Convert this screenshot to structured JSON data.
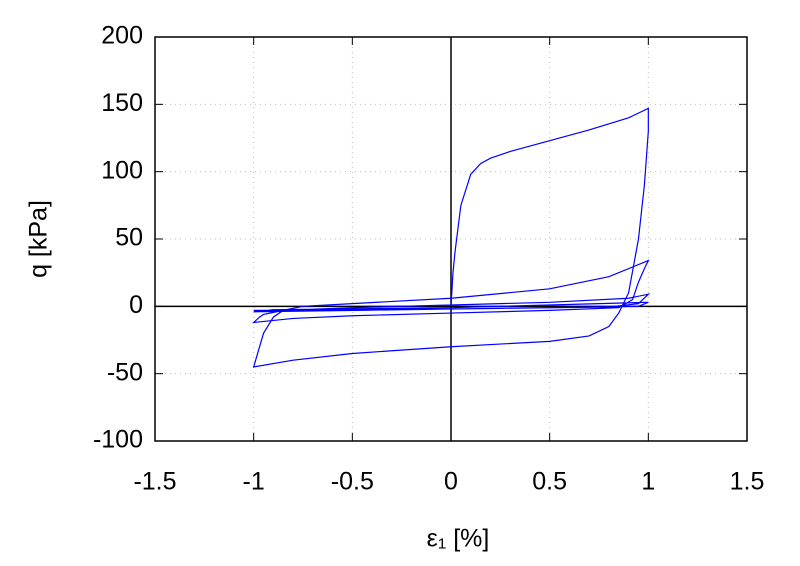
{
  "chart_data": {
    "type": "line",
    "xlabel": "ε₁ [%]",
    "ylabel": "q [kPa]",
    "x": [
      0,
      0.01,
      0.02,
      0.05,
      0.1,
      0.15,
      0.2,
      0.3,
      0.5,
      0.7,
      0.9,
      1.0,
      1.0,
      0.98,
      0.95,
      0.9,
      0.85,
      0.8,
      0.7,
      0.5,
      0,
      -0.5,
      -0.8,
      -1.0,
      -0.97,
      -0.95,
      -0.9,
      -0.85,
      -0.75,
      -0.5,
      0,
      0.5,
      0.8,
      1.0,
      0.98,
      0.95,
      0.92,
      0.85,
      0.5,
      0,
      -0.5,
      -0.8,
      -1.0,
      -0.97,
      -0.95,
      -0.85,
      -0.5,
      0,
      0.5,
      0.9,
      1.0,
      0.95,
      0.8,
      0,
      -1.0,
      -0.9,
      0,
      1.0,
      0.95,
      0,
      -1.0
    ],
    "values": [
      0,
      25,
      40,
      75,
      98,
      106,
      110,
      115,
      123,
      131,
      140,
      147,
      130,
      90,
      50,
      10,
      -5,
      -15,
      -22,
      -26,
      -30,
      -35,
      -40,
      -45,
      -30,
      -20,
      -8,
      -3,
      0,
      2,
      6,
      13,
      22,
      34,
      28,
      18,
      5,
      -1,
      -3,
      -5,
      -7,
      -9,
      -12,
      -8,
      -6,
      -3,
      -1,
      1,
      3,
      6,
      9,
      2,
      -0.5,
      -2,
      -4,
      -2.5,
      -1,
      3,
      0,
      -2,
      -3
    ],
    "color": "#0000ff",
    "xlim": [
      -1.5,
      1.5
    ],
    "xticks": [
      -1.5,
      -1,
      -0.5,
      0,
      0.5,
      1,
      1.5
    ],
    "ylim": [
      -100,
      200
    ],
    "yticks": [
      -100,
      -50,
      0,
      50,
      100,
      150,
      200
    ],
    "grid": true
  }
}
